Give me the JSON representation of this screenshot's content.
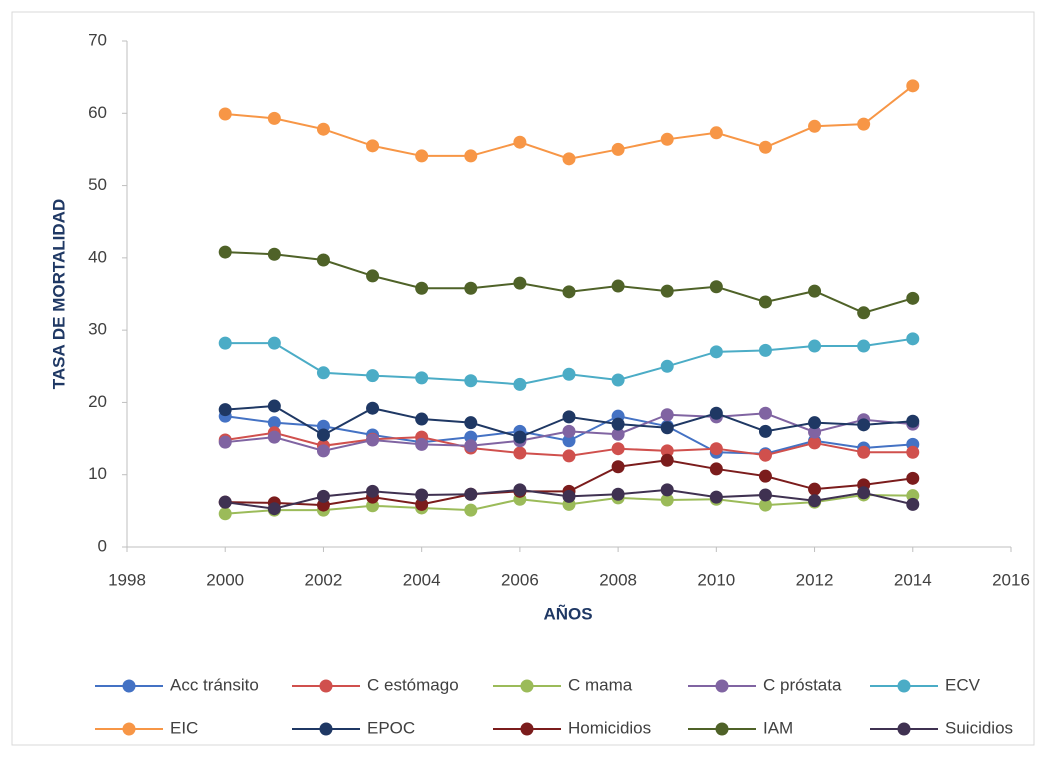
{
  "chart_data": {
    "type": "line",
    "x_label": "AÑOS",
    "y_label": "TASA DE MORTALIDAD",
    "x": [
      2000,
      2001,
      2002,
      2003,
      2004,
      2005,
      2006,
      2007,
      2008,
      2009,
      2010,
      2011,
      2012,
      2013,
      2014
    ],
    "xlim": [
      1998,
      2016
    ],
    "xticks": [
      1998,
      2000,
      2002,
      2004,
      2006,
      2008,
      2010,
      2012,
      2014,
      2016
    ],
    "ylim": [
      0,
      70
    ],
    "yticks": [
      0,
      10,
      20,
      30,
      40,
      50,
      60,
      70
    ],
    "grid": false,
    "markers": true,
    "legend": "bottom",
    "series": [
      {
        "name": "Acc tránsito",
        "color": "#4472c4",
        "values": [
          18.1,
          17.2,
          16.7,
          15.5,
          14.5,
          15.2,
          16,
          14.7,
          18.1,
          16.7,
          13.1,
          12.9,
          14.7,
          13.7,
          14.2
        ]
      },
      {
        "name": "C estómago",
        "color": "#d0504d",
        "values": [
          14.8,
          15.8,
          14,
          14.9,
          15.2,
          13.7,
          13,
          12.6,
          13.6,
          13.3,
          13.6,
          12.7,
          14.4,
          13.1,
          13.1
        ]
      },
      {
        "name": "C mama",
        "color": "#9bbb59",
        "values": [
          4.6,
          5.1,
          5.1,
          5.7,
          5.4,
          5.1,
          6.6,
          5.9,
          6.8,
          6.5,
          6.6,
          5.8,
          6.2,
          7.2,
          7.1
        ]
      },
      {
        "name": "C próstata",
        "color": "#8064a2",
        "values": [
          14.5,
          15.2,
          13.3,
          14.8,
          14.2,
          14,
          14.7,
          16,
          15.6,
          18.3,
          18,
          18.5,
          15.9,
          17.6,
          17
        ]
      },
      {
        "name": "ECV",
        "color": "#4bacc6",
        "values": [
          28.2,
          28.2,
          24.1,
          23.7,
          23.4,
          23,
          22.5,
          23.9,
          23.1,
          25,
          27,
          27.2,
          27.8,
          27.8,
          28.8
        ]
      },
      {
        "name": "EIC",
        "color": "#f79646",
        "values": [
          59.9,
          59.3,
          57.8,
          55.5,
          54.1,
          54.1,
          56,
          53.7,
          55,
          56.4,
          57.3,
          55.3,
          58.2,
          58.5,
          63.8
        ]
      },
      {
        "name": "EPOC",
        "color": "#1f3864",
        "values": [
          19,
          19.5,
          15.5,
          19.2,
          17.7,
          17.2,
          15.2,
          18,
          17,
          16.5,
          18.5,
          16,
          17.2,
          16.9,
          17.4
        ]
      },
      {
        "name": "Homicidios",
        "color": "#7b1c1c",
        "values": [
          6.2,
          6.1,
          5.8,
          6.9,
          5.9,
          7.3,
          7.7,
          7.7,
          11.1,
          12,
          10.8,
          9.8,
          8,
          8.6,
          9.5
        ]
      },
      {
        "name": "IAM",
        "color": "#4f6228",
        "values": [
          40.8,
          40.5,
          39.7,
          37.5,
          35.8,
          35.8,
          36.5,
          35.3,
          36.1,
          35.4,
          36,
          33.9,
          35.4,
          32.4,
          34.4
        ]
      },
      {
        "name": "Suicidios",
        "color": "#3f3151",
        "values": [
          6.2,
          5.3,
          7,
          7.7,
          7.2,
          7.3,
          7.9,
          7,
          7.3,
          7.9,
          6.9,
          7.2,
          6.4,
          7.5,
          5.9
        ]
      }
    ]
  }
}
